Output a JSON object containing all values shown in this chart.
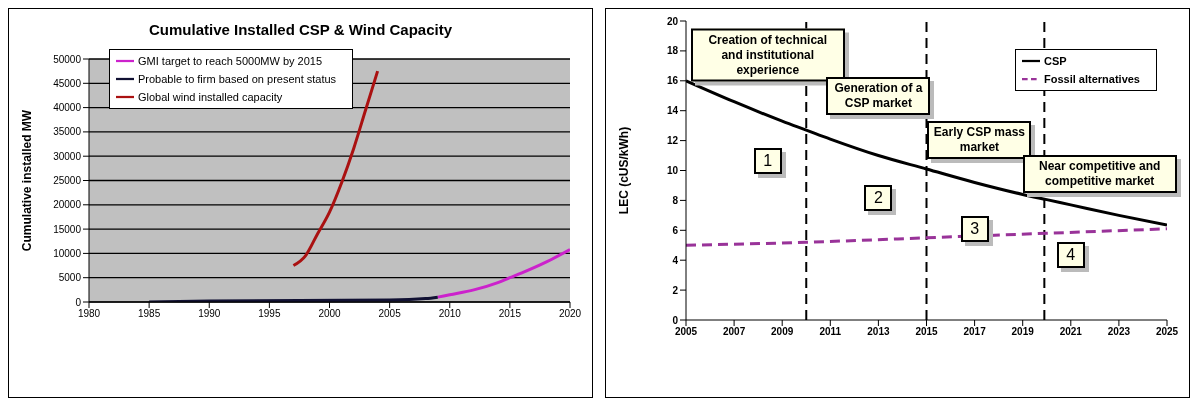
{
  "chart_data": [
    {
      "type": "line",
      "title": "Cumulative Installed CSP & Wind Capacity",
      "ylabel": "Cumulative installed MW",
      "xlim": [
        1980,
        2020
      ],
      "xticks": [
        1980,
        1985,
        1990,
        1995,
        2000,
        2005,
        2010,
        2015,
        2020
      ],
      "ylim": [
        0,
        50000
      ],
      "yticks": [
        0,
        5000,
        10000,
        15000,
        20000,
        25000,
        30000,
        35000,
        40000,
        45000,
        50000
      ],
      "grid": "y",
      "legend": "top left",
      "marker": "none",
      "series": [
        {
          "name": "GMI target to reach 5000MW by 2015",
          "color": "#cc22cc",
          "x": [
            2009,
            2010,
            2012,
            2014,
            2015,
            2016,
            2018,
            2020
          ],
          "values": [
            1000,
            1500,
            2500,
            4000,
            5000,
            6000,
            8200,
            10800
          ]
        },
        {
          "name": "Probable to firm based on present status",
          "color": "#111133",
          "x": [
            1985,
            1990,
            2005,
            2008,
            2009
          ],
          "values": [
            0,
            200,
            400,
            700,
            1000
          ]
        },
        {
          "name": "Global wind installed capacity",
          "color": "#aa1111",
          "x": [
            1997,
            1998,
            1999,
            2000,
            2001,
            2002,
            2003,
            2004
          ],
          "values": [
            7500,
            9500,
            14000,
            18500,
            24500,
            31500,
            39500,
            47500
          ]
        }
      ]
    },
    {
      "type": "line",
      "ylabel": "LEC (cUS/kWh)",
      "xlim": [
        2005,
        2025
      ],
      "xticks": [
        2005,
        2007,
        2009,
        2011,
        2013,
        2015,
        2017,
        2019,
        2021,
        2023,
        2025
      ],
      "ylim": [
        0,
        20
      ],
      "yticks": [
        0,
        2,
        4,
        6,
        8,
        10,
        12,
        14,
        16,
        18,
        20
      ],
      "grid": false,
      "legend": "top right",
      "marker": "none",
      "series": [
        {
          "name": "CSP",
          "color": "#000000",
          "line_style": "solid",
          "x": [
            2005,
            2007,
            2009,
            2010,
            2011,
            2013,
            2015,
            2017,
            2019,
            2020,
            2021,
            2023,
            2025
          ],
          "values": [
            16,
            14.6,
            13.3,
            12.7,
            12.1,
            11,
            10.1,
            9.2,
            8.4,
            8.05,
            7.7,
            7,
            6.35
          ]
        },
        {
          "name": "Fossil alternatives",
          "color": "#993399",
          "line_style": "dashed",
          "x": [
            2005,
            2010,
            2015,
            2020,
            2025
          ],
          "values": [
            5,
            5.2,
            5.5,
            5.8,
            6.1
          ]
        }
      ],
      "ref_lines": [
        {
          "axis": "x",
          "value": 2010,
          "color": "#000000",
          "line_style": "dashed"
        },
        {
          "axis": "x",
          "value": 2015,
          "color": "#000000",
          "line_style": "dashed"
        },
        {
          "axis": "x",
          "value": 2019.9,
          "color": "#000000",
          "line_style": "dashed"
        }
      ],
      "annotations": [
        "Creation of technical and institutional experience",
        "Generation of a CSP market",
        "Early CSP mass market",
        "Near competitive and competitive market",
        "1",
        "2",
        "3",
        "4"
      ]
    }
  ]
}
